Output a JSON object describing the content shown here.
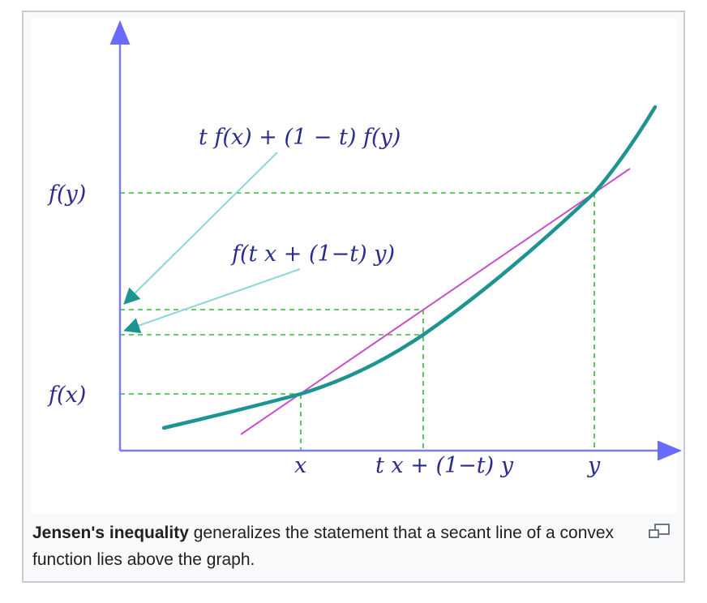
{
  "diagram": {
    "y_labels": {
      "fy": "f(y)",
      "fx": "f(x)"
    },
    "x_labels": {
      "x": "x",
      "mid": "t x + (1−t) y",
      "y": "y"
    },
    "annotations": {
      "secant_value": "t f(x) + (1 − t) f(y)",
      "function_value": "f(t x + (1−t) y)"
    },
    "colors": {
      "axes": "#7b7bff",
      "curve": "#1e9490",
      "secant": "#c94fc9",
      "guides": "#36b836",
      "pointers": "#7fd0d0",
      "math_text": "#2b2b8f"
    }
  },
  "caption": {
    "bold": "Jensen's inequality",
    "text": " generalizes the statement that a secant line of a convex function lies above the graph."
  },
  "controls": {
    "enlarge_icon": "magnify-icon"
  }
}
